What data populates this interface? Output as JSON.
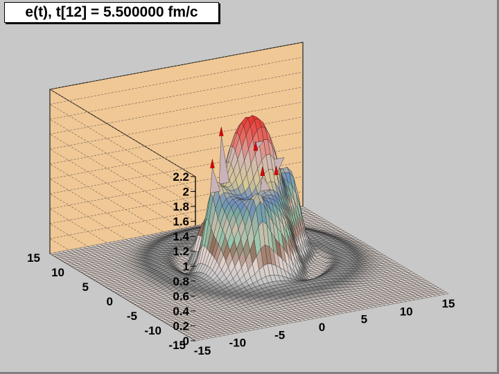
{
  "title": "e(t), t[12] = 5.500000 fm/c",
  "colors": {
    "background": "#c8c8c8",
    "wall": "#f0c896",
    "wall_line": "#000000",
    "surface_low": "#d2c4bc",
    "peak_tip": "#e00000",
    "mesh": "#202020"
  },
  "chart_data": {
    "type": "surface",
    "title": "e(t), t[12] = 5.500000 fm/c",
    "xlabel": "",
    "ylabel": "",
    "zlabel": "",
    "xlim": [
      -15,
      15
    ],
    "ylim": [
      -15,
      15
    ],
    "zlim": [
      0,
      2.2
    ],
    "x_ticks": [
      "-15",
      "-10",
      "-5",
      "0",
      "5",
      "10",
      "15"
    ],
    "y_ticks": [
      "-15",
      "-10",
      "-5",
      "0",
      "5",
      "10",
      "15"
    ],
    "z_ticks": [
      "0",
      "0.2",
      "0.4",
      "0.6",
      "0.8",
      "1",
      "1.2",
      "1.4",
      "1.6",
      "1.8",
      "2",
      "2.2"
    ],
    "grid": true,
    "peak_max": 1.83
  }
}
